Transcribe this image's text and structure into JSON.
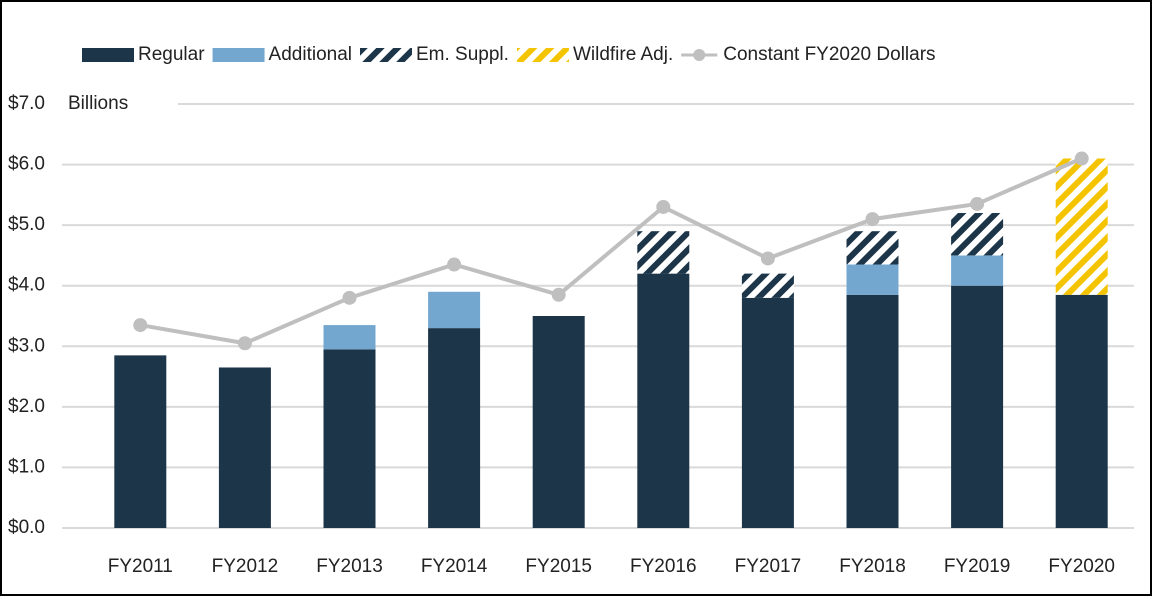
{
  "chart_data": {
    "type": "bar",
    "stacked": true,
    "y_unit_label": "Billions",
    "categories": [
      "FY2011",
      "FY2012",
      "FY2013",
      "FY2014",
      "FY2015",
      "FY2016",
      "FY2017",
      "FY2018",
      "FY2019",
      "FY2020"
    ],
    "series": [
      {
        "name": "Regular",
        "color": "#1c3549",
        "values": [
          2.85,
          2.65,
          2.95,
          3.3,
          3.5,
          4.2,
          3.8,
          3.85,
          4.0,
          3.85
        ]
      },
      {
        "name": "Additional",
        "color": "#74a7cf",
        "values": [
          null,
          null,
          0.4,
          0.6,
          null,
          null,
          null,
          0.5,
          0.5,
          null
        ]
      },
      {
        "name": "Em. Suppl.",
        "color": "#1c3549",
        "hatch": true,
        "values": [
          null,
          null,
          null,
          null,
          null,
          0.7,
          0.4,
          0.55,
          0.7,
          null
        ]
      },
      {
        "name": "Wildfire Adj.",
        "color": "#f5c400",
        "hatch": true,
        "values": [
          null,
          null,
          null,
          null,
          null,
          null,
          null,
          null,
          null,
          2.25
        ]
      },
      {
        "name": "Constant FY2020 Dollars",
        "type": "line",
        "color": "#bfbfbf",
        "values": [
          3.35,
          3.05,
          3.8,
          4.35,
          3.85,
          5.3,
          4.45,
          5.1,
          5.35,
          6.1
        ]
      }
    ],
    "ylim": [
      0,
      7
    ],
    "yticks": [
      {
        "value": 0,
        "label": "$0.0"
      },
      {
        "value": 1,
        "label": "$1.0"
      },
      {
        "value": 2,
        "label": "$2.0"
      },
      {
        "value": 3,
        "label": "$3.0"
      },
      {
        "value": 4,
        "label": "$4.0"
      },
      {
        "value": 5,
        "label": "$5.0"
      },
      {
        "value": 6,
        "label": "$6.0"
      },
      {
        "value": 7,
        "label": "$7.0"
      }
    ],
    "grid": true,
    "legend": "top"
  }
}
